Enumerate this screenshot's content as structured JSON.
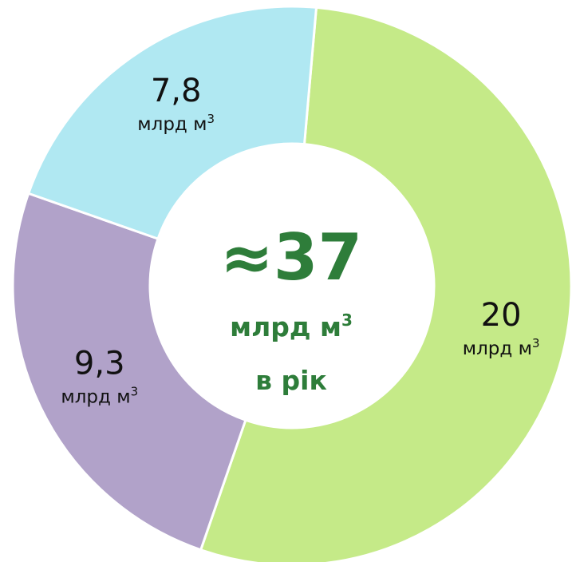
{
  "chart_data": {
    "type": "pie",
    "donut": true,
    "unit": "млрд м",
    "unit_sup": "3",
    "center": {
      "total": "≈37",
      "unit": "млрд м",
      "unit_sup": "3",
      "period": "в рік",
      "color": "#2e7d3a"
    },
    "slices": [
      {
        "value": 20,
        "label": "20",
        "color": "#c5ea88"
      },
      {
        "value": 9.3,
        "label": "9,3",
        "color": "#b1a2c9"
      },
      {
        "value": 7.8,
        "label": "7,8",
        "color": "#b0e8f2"
      }
    ]
  }
}
